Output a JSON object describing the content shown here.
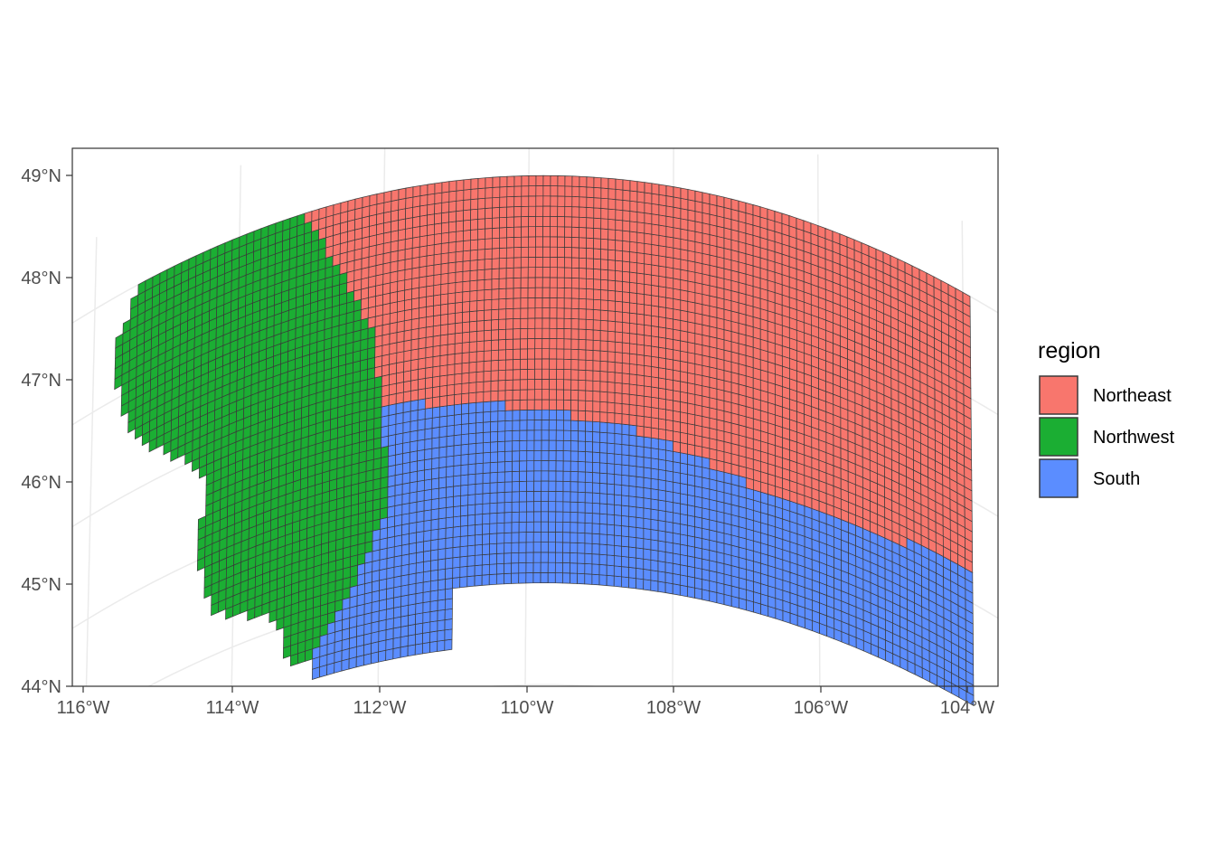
{
  "chart_data": {
    "type": "map",
    "title": "",
    "projection": "conic (curved graticule)",
    "grid": true,
    "x_ticks": [
      "116°W",
      "114°W",
      "112°W",
      "110°W",
      "108°W",
      "106°W",
      "104°W"
    ],
    "y_ticks": [
      "44°N",
      "45°N",
      "46°N",
      "47°N",
      "48°N",
      "49°N"
    ],
    "xlim": [
      -116.1,
      -103.6
    ],
    "ylim": [
      44.0,
      49.3
    ],
    "legend": {
      "title": "region",
      "position": "right",
      "entries": [
        {
          "name": "Northeast",
          "color": "#F8766D"
        },
        {
          "name": "Northwest",
          "color": "#1BAE33"
        },
        {
          "name": "South",
          "color": "#5B8DFF"
        }
      ]
    },
    "cell_border_color": "#3a3a3a",
    "regions": [
      "Northeast",
      "Northwest",
      "South"
    ]
  }
}
